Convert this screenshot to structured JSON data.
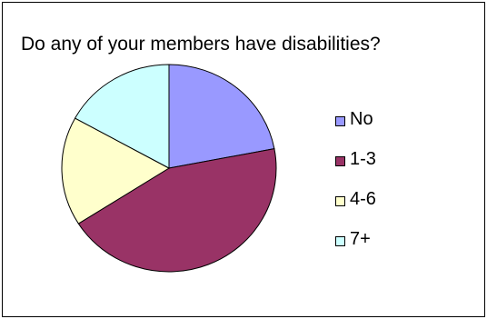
{
  "chart_data": {
    "type": "pie",
    "title": "Do any of your members have disabilities?",
    "categories": [
      "No",
      "1-3",
      "4-6",
      "7+"
    ],
    "values": [
      22,
      44,
      17,
      17
    ],
    "colors": [
      "#9999ff",
      "#993366",
      "#ffffcc",
      "#ccffff"
    ],
    "legend_position": "right",
    "start_angle_deg": 0,
    "direction": "clockwise"
  }
}
